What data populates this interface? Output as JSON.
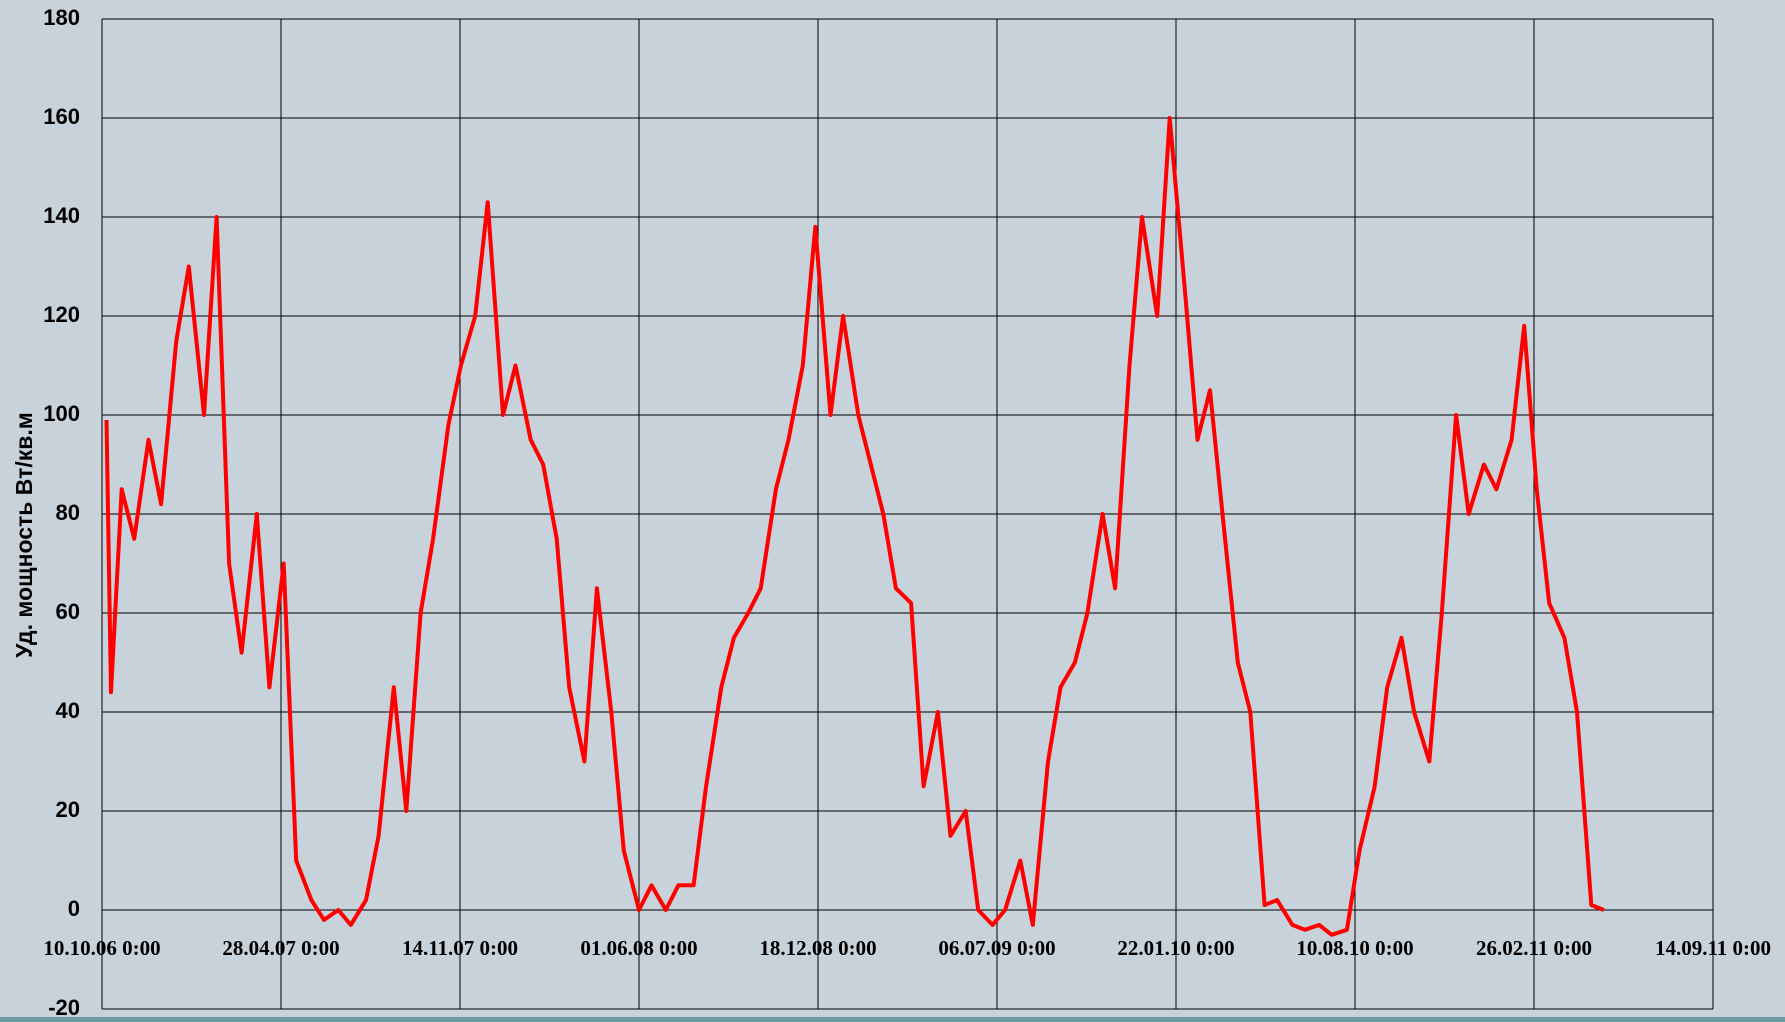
{
  "chart_data": {
    "type": "line",
    "y_label": "Уд. мощность Вт/кв.м",
    "color": "#ff0000",
    "grid": true,
    "ylim": [
      -20,
      180
    ],
    "yticks": [
      -20,
      0,
      20,
      40,
      60,
      80,
      100,
      120,
      140,
      160,
      180
    ],
    "xlim": [
      "2006-10-10",
      "2011-09-14"
    ],
    "xticks": [
      {
        "value": "2006-10-10",
        "label": "10.10.06 0:00"
      },
      {
        "value": "2007-04-28",
        "label": "28.04.07 0:00"
      },
      {
        "value": "2007-11-14",
        "label": "14.11.07 0:00"
      },
      {
        "value": "2008-06-01",
        "label": "01.06.08 0:00"
      },
      {
        "value": "2008-12-18",
        "label": "18.12.08 0:00"
      },
      {
        "value": "2009-07-06",
        "label": "06.07.09 0:00"
      },
      {
        "value": "2010-01-22",
        "label": "22.01.10 0:00"
      },
      {
        "value": "2010-08-10",
        "label": "10.08.10 0:00"
      },
      {
        "value": "2011-02-26",
        "label": "26.02.11 0:00"
      },
      {
        "value": "2011-09-14",
        "label": "14.09.11 0:00"
      }
    ],
    "x": [
      "2006-10-15",
      "2006-10-20",
      "2006-11-01",
      "2006-11-15",
      "2006-12-01",
      "2006-12-15",
      "2007-01-01",
      "2007-01-15",
      "2007-02-01",
      "2007-02-15",
      "2007-03-01",
      "2007-03-15",
      "2007-04-01",
      "2007-04-15",
      "2007-05-01",
      "2007-05-15",
      "2007-06-01",
      "2007-06-15",
      "2007-07-01",
      "2007-07-15",
      "2007-08-01",
      "2007-08-15",
      "2007-09-01",
      "2007-09-15",
      "2007-10-01",
      "2007-10-15",
      "2007-11-01",
      "2007-11-15",
      "2007-12-01",
      "2007-12-15",
      "2008-01-01",
      "2008-01-15",
      "2008-02-01",
      "2008-02-15",
      "2008-03-01",
      "2008-03-15",
      "2008-04-01",
      "2008-04-15",
      "2008-05-01",
      "2008-05-15",
      "2008-06-01",
      "2008-06-15",
      "2008-07-01",
      "2008-07-15",
      "2008-08-01",
      "2008-08-15",
      "2008-09-01",
      "2008-09-15",
      "2008-10-01",
      "2008-10-15",
      "2008-11-01",
      "2008-11-15",
      "2008-12-01",
      "2008-12-15",
      "2009-01-01",
      "2009-01-15",
      "2009-02-01",
      "2009-02-15",
      "2009-03-01",
      "2009-03-15",
      "2009-04-01",
      "2009-04-15",
      "2009-05-01",
      "2009-05-15",
      "2009-06-01",
      "2009-06-15",
      "2009-07-01",
      "2009-07-15",
      "2009-08-01",
      "2009-08-15",
      "2009-09-01",
      "2009-09-15",
      "2009-10-01",
      "2009-10-15",
      "2009-11-01",
      "2009-11-15",
      "2009-12-01",
      "2009-12-15",
      "2010-01-01",
      "2010-01-15",
      "2010-02-01",
      "2010-02-15",
      "2010-03-01",
      "2010-03-15",
      "2010-04-01",
      "2010-04-15",
      "2010-05-01",
      "2010-05-15",
      "2010-06-01",
      "2010-06-15",
      "2010-07-01",
      "2010-07-15",
      "2010-08-01",
      "2010-08-15",
      "2010-09-01",
      "2010-09-15",
      "2010-10-01",
      "2010-10-15",
      "2010-11-01",
      "2010-11-15",
      "2010-12-01",
      "2010-12-15",
      "2011-01-01",
      "2011-01-15",
      "2011-02-01",
      "2011-02-15",
      "2011-03-01",
      "2011-03-15",
      "2011-04-01",
      "2011-04-15",
      "2011-05-01",
      "2011-05-15"
    ],
    "values": [
      99,
      44,
      85,
      75,
      95,
      82,
      115,
      130,
      100,
      140,
      70,
      52,
      80,
      45,
      70,
      10,
      2,
      -2,
      0,
      -3,
      2,
      15,
      45,
      20,
      60,
      75,
      98,
      110,
      120,
      143,
      100,
      110,
      95,
      90,
      75,
      45,
      30,
      65,
      40,
      12,
      0,
      5,
      0,
      5,
      5,
      25,
      45,
      55,
      60,
      65,
      85,
      95,
      110,
      138,
      100,
      120,
      100,
      90,
      80,
      65,
      62,
      25,
      40,
      15,
      20,
      0,
      -3,
      0,
      10,
      -3,
      30,
      45,
      50,
      60,
      80,
      65,
      110,
      140,
      120,
      160,
      125,
      95,
      105,
      80,
      50,
      40,
      1,
      2,
      -3,
      -4,
      -3,
      -5,
      -4,
      12,
      25,
      45,
      55,
      40,
      30,
      60,
      100,
      80,
      90,
      85,
      95,
      118,
      85,
      62,
      55,
      40,
      1,
      0
    ]
  }
}
